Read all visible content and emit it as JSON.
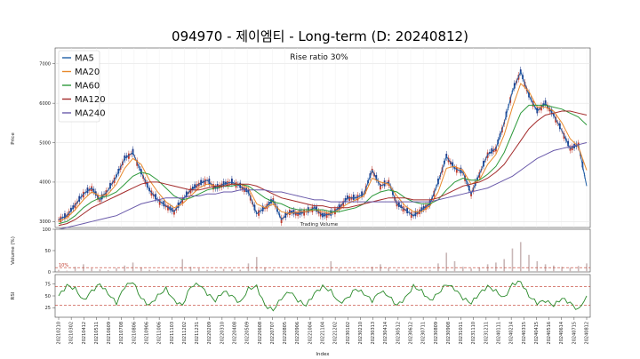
{
  "chart_data": {
    "type": "line",
    "title": "094970 - 제이엠티 - Long-term (D: 20240812)",
    "annotation": "Rise ratio 30%",
    "volume_label": "Trading Volume",
    "xlabel": "Index",
    "x_tick_labels": [
      "20210210",
      "20210302",
      "20210412",
      "20210511",
      "20210609",
      "20210708",
      "20210806",
      "20210906",
      "20211006",
      "20211103",
      "20211202",
      "20211231",
      "20220209",
      "20220310",
      "20220408",
      "20220509",
      "20220608",
      "20220707",
      "20220805",
      "20220906",
      "20221004",
      "20221104",
      "20221202",
      "20230102",
      "20230210",
      "20230313",
      "20230414",
      "20230512",
      "20230612",
      "20230711",
      "20230809",
      "20230908",
      "20231011",
      "20231110",
      "20231211",
      "20240111",
      "20240214",
      "20240315",
      "20240415",
      "20240516",
      "20240614",
      "20240715",
      "20240812"
    ],
    "price_panel": {
      "ylabel": "Price",
      "yticks": [
        3000,
        4000,
        5000,
        6000,
        7000
      ],
      "ylim": [
        2850,
        7400
      ],
      "legend_position": "top-left",
      "series": [
        {
          "name": "MA5",
          "color": "#1f5fa6",
          "values": [
            3050,
            3150,
            3420,
            3700,
            3850,
            3550,
            3800,
            4150,
            4600,
            4750,
            4250,
            3800,
            3550,
            3400,
            3250,
            3550,
            3800,
            3950,
            4050,
            3850,
            3950,
            4000,
            3900,
            3750,
            3200,
            3350,
            3550,
            3050,
            3250,
            3200,
            3250,
            3350,
            3150,
            3200,
            3350,
            3600,
            3600,
            3700,
            4300,
            3900,
            4000,
            3450,
            3300,
            3150,
            3300,
            3450,
            4000,
            4650,
            4350,
            4250,
            3700,
            4200,
            4700,
            4850,
            5500,
            6300,
            6800,
            6200,
            5800,
            6000,
            5700,
            5300,
            4850,
            4950,
            3900
          ]
        },
        {
          "name": "MA20",
          "color": "#e8892b",
          "values": [
            3000,
            3100,
            3300,
            3550,
            3750,
            3650,
            3700,
            3950,
            4350,
            4600,
            4450,
            4050,
            3750,
            3500,
            3350,
            3450,
            3650,
            3850,
            3950,
            3900,
            3900,
            3950,
            3950,
            3850,
            3450,
            3350,
            3450,
            3250,
            3200,
            3250,
            3250,
            3300,
            3250,
            3200,
            3300,
            3450,
            3550,
            3650,
            4100,
            4000,
            3950,
            3650,
            3400,
            3250,
            3250,
            3400,
            3750,
            4350,
            4400,
            4300,
            3950,
            4050,
            4450,
            4700,
            5200,
            5900,
            6500,
            6300,
            5900,
            5900,
            5800,
            5500,
            5100,
            4900,
            4300
          ]
        },
        {
          "name": "MA60",
          "color": "#2e9a3c",
          "values": [
            2950,
            3000,
            3150,
            3350,
            3500,
            3600,
            3650,
            3750,
            3950,
            4150,
            4250,
            4200,
            4050,
            3850,
            3650,
            3550,
            3600,
            3700,
            3800,
            3850,
            3900,
            3900,
            3950,
            3900,
            3750,
            3600,
            3500,
            3450,
            3350,
            3300,
            3300,
            3300,
            3300,
            3250,
            3250,
            3300,
            3350,
            3450,
            3650,
            3750,
            3800,
            3750,
            3600,
            3500,
            3450,
            3450,
            3550,
            3800,
            4000,
            4100,
            4050,
            4050,
            4200,
            4400,
            4750,
            5250,
            5750,
            5950,
            5950,
            5950,
            5900,
            5850,
            5750,
            5650,
            5450
          ]
        },
        {
          "name": "MA120",
          "color": "#a32a2a",
          "values": [
            2900,
            2950,
            3050,
            3200,
            3350,
            3450,
            3550,
            3650,
            3750,
            3850,
            3950,
            4000,
            4000,
            3950,
            3900,
            3850,
            3800,
            3800,
            3850,
            3900,
            3900,
            3950,
            3950,
            3950,
            3900,
            3800,
            3700,
            3600,
            3550,
            3500,
            3450,
            3400,
            3400,
            3350,
            3350,
            3350,
            3400,
            3450,
            3500,
            3550,
            3600,
            3600,
            3600,
            3550,
            3550,
            3550,
            3600,
            3700,
            3800,
            3900,
            3950,
            4000,
            4100,
            4250,
            4450,
            4750,
            5050,
            5350,
            5550,
            5700,
            5750,
            5800,
            5800,
            5750,
            5700
          ]
        },
        {
          "name": "MA240",
          "color": "#6a5aaa",
          "values": [
            2800,
            2850,
            2900,
            2950,
            3000,
            3050,
            3100,
            3150,
            3250,
            3350,
            3450,
            3500,
            3550,
            3600,
            3600,
            3600,
            3650,
            3650,
            3700,
            3700,
            3750,
            3750,
            3800,
            3800,
            3800,
            3800,
            3750,
            3750,
            3700,
            3650,
            3600,
            3550,
            3550,
            3500,
            3500,
            3500,
            3500,
            3500,
            3500,
            3500,
            3500,
            3500,
            3500,
            3500,
            3500,
            3500,
            3550,
            3600,
            3650,
            3700,
            3750,
            3800,
            3850,
            3950,
            4050,
            4150,
            4300,
            4450,
            4600,
            4700,
            4800,
            4850,
            4900,
            4950,
            5000
          ]
        }
      ]
    },
    "volume_panel": {
      "ylabel": "Volume (%)",
      "yticks": [
        0,
        50,
        100
      ],
      "ylim": [
        0,
        100
      ],
      "threshold": 10,
      "threshold_label": "10%",
      "values": [
        5,
        3,
        12,
        18,
        8,
        6,
        4,
        9,
        15,
        22,
        10,
        5,
        4,
        3,
        6,
        30,
        12,
        8,
        5,
        4,
        7,
        6,
        5,
        20,
        35,
        10,
        6,
        4,
        3,
        5,
        4,
        3,
        6,
        25,
        8,
        5,
        4,
        3,
        12,
        18,
        9,
        6,
        5,
        4,
        3,
        5,
        20,
        45,
        25,
        12,
        8,
        10,
        18,
        22,
        30,
        55,
        70,
        40,
        25,
        18,
        15,
        12,
        10,
        14,
        20
      ]
    },
    "rsi_panel": {
      "ylabel": "RSI",
      "yticks": [
        25,
        50,
        75
      ],
      "ylim": [
        5,
        95
      ],
      "upper_threshold": 70,
      "lower_threshold": 30,
      "color": "#2a8a2a",
      "values": [
        50,
        72,
        65,
        40,
        60,
        75,
        55,
        35,
        70,
        80,
        45,
        30,
        50,
        65,
        40,
        30,
        70,
        75,
        55,
        40,
        60,
        50,
        35,
        65,
        70,
        30,
        20,
        45,
        60,
        40,
        30,
        55,
        70,
        60,
        35,
        45,
        65,
        55,
        40,
        60,
        50,
        30,
        45,
        70,
        60,
        40,
        55,
        75,
        65,
        45,
        35,
        55,
        70,
        60,
        45,
        75,
        80,
        50,
        35,
        40,
        30,
        45,
        35,
        20,
        50
      ]
    }
  }
}
